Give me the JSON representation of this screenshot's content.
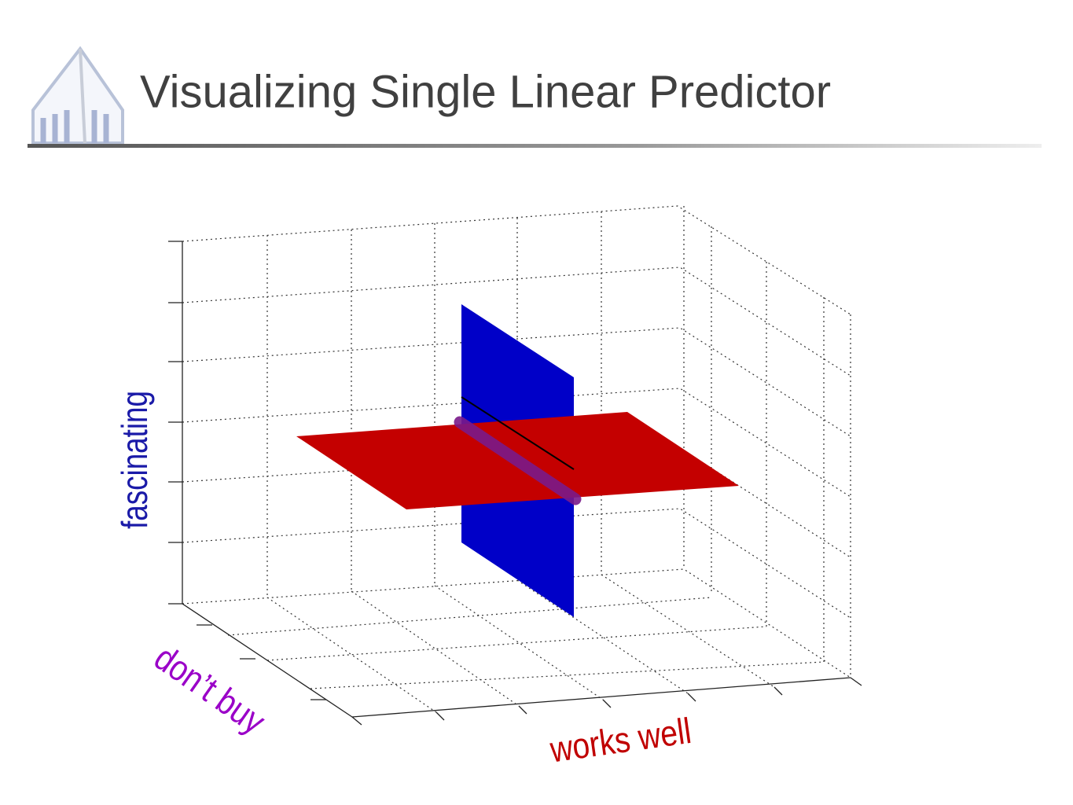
{
  "header": {
    "title": "Visualizing Single Linear Predictor"
  },
  "diagram": {
    "z_label": "fascinating",
    "y_label": "don’t buy",
    "x_label": "works well"
  }
}
